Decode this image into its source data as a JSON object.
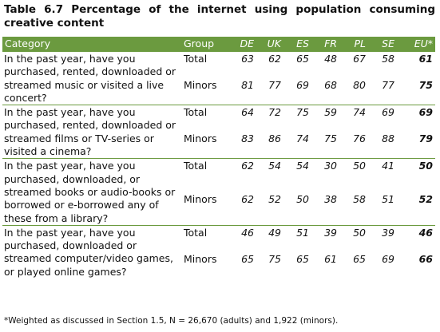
{
  "title": "Table 6.7 Percentage of the internet using population consuming creative content",
  "table": {
    "header": [
      "Category",
      "Group",
      "DE",
      "UK",
      "ES",
      "FR",
      "PL",
      "SE",
      "EU*"
    ],
    "groups": [
      {
        "category": "In the past year, have you purchased, rented, downloaded or streamed music or visited a live concert?",
        "rows": [
          [
            "Total",
            63,
            62,
            65,
            48,
            67,
            58,
            61
          ],
          [
            "Minors",
            81,
            77,
            69,
            68,
            80,
            77,
            75
          ]
        ]
      },
      {
        "category": "In the past year, have you purchased, rented, downloaded or streamed films or TV-series or visited a cinema?",
        "rows": [
          [
            "Total",
            64,
            72,
            75,
            59,
            74,
            69,
            69
          ],
          [
            "Minors",
            83,
            86,
            74,
            75,
            76,
            88,
            79
          ]
        ]
      },
      {
        "category": "In the past year, have you purchased, downloaded, or streamed books or audio-books or borrowed or e-borrowed any of these from a library?",
        "rows": [
          [
            "Total",
            62,
            54,
            54,
            30,
            50,
            41,
            50
          ],
          [
            "Minors",
            62,
            52,
            50,
            38,
            58,
            51,
            52
          ]
        ]
      },
      {
        "category": "In the past year, have you purchased, downloaded or streamed computer/video games, or played online games?",
        "rows": [
          [
            "Total",
            46,
            49,
            51,
            39,
            50,
            39,
            46
          ],
          [
            "Minors",
            65,
            75,
            65,
            61,
            65,
            69,
            66
          ]
        ]
      }
    ]
  },
  "footnote": "*Weighted as discussed in Section 1.5, N = 26,670 (adults) and 1,922 (minors)."
}
